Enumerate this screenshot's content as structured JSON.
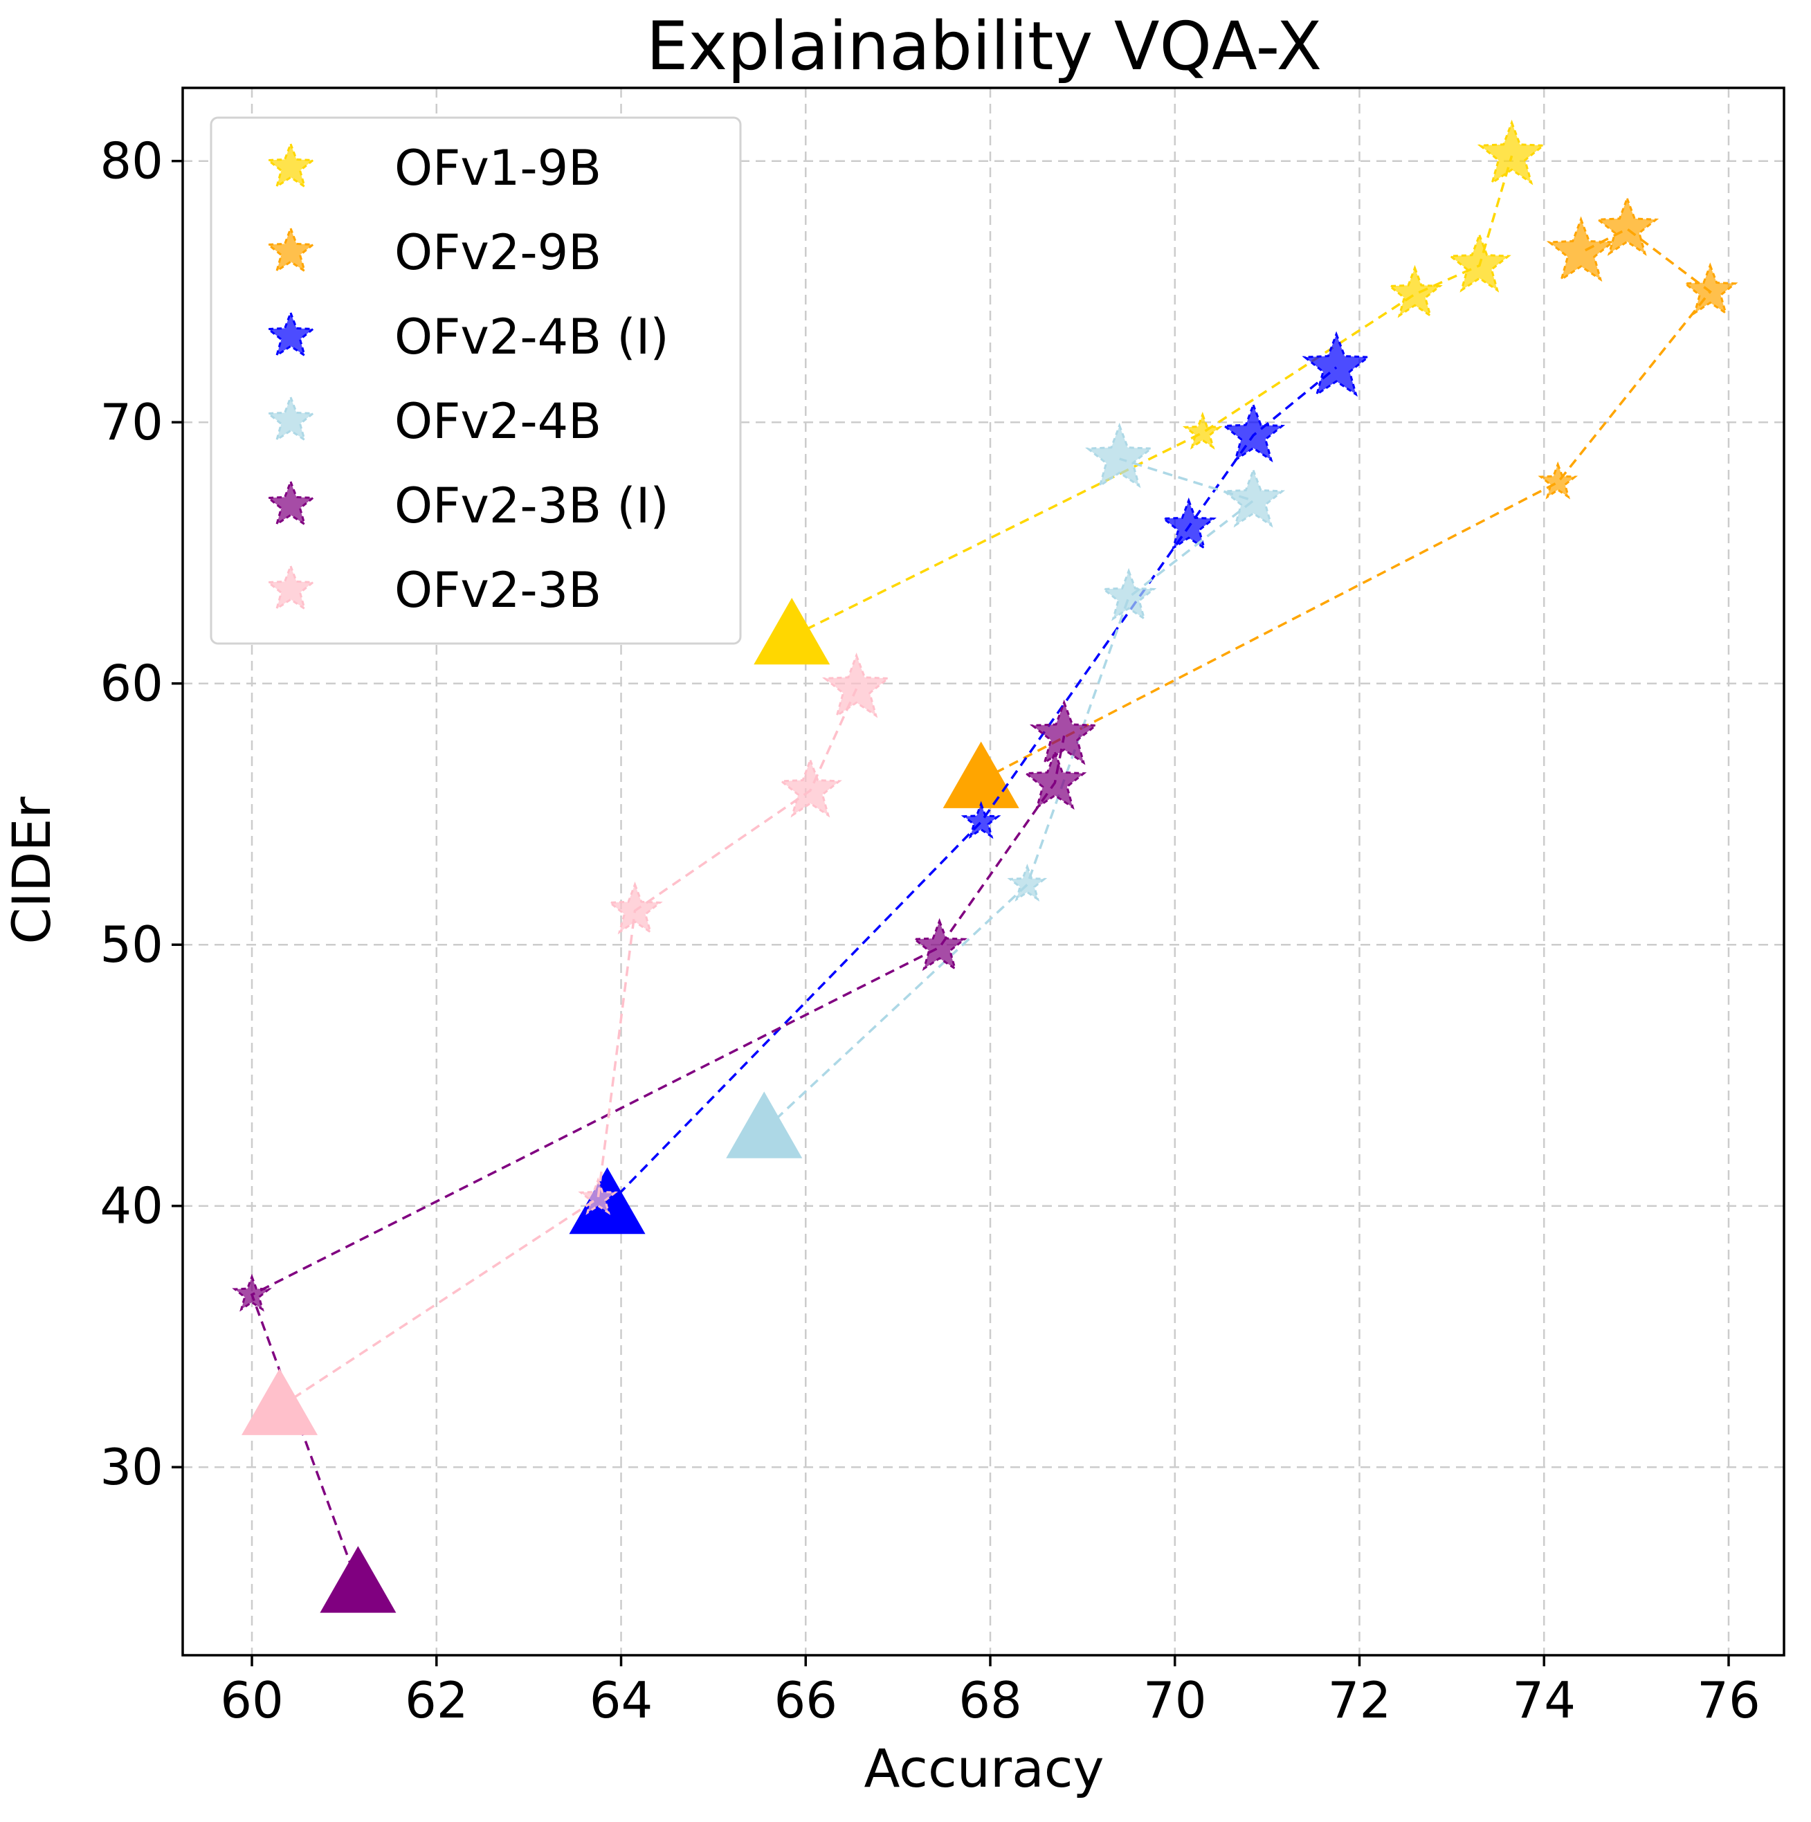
{
  "chart_data": {
    "type": "scatter",
    "title": "Explainability VQA-X",
    "xlabel": "Accuracy",
    "ylabel": "CIDEr",
    "xlim": [
      59.25,
      76.6
    ],
    "ylim": [
      22.8,
      82.8
    ],
    "xticks": [
      60,
      62,
      64,
      66,
      68,
      70,
      72,
      74,
      76
    ],
    "yticks": [
      30,
      40,
      50,
      60,
      70,
      80
    ],
    "grid": true,
    "legend_position": "top-left",
    "series": [
      {
        "name": "OFv1-9B",
        "color": "#FFD700",
        "baseline": {
          "x": 65.85,
          "y": 61.8
        },
        "points": [
          {
            "x": 70.3,
            "y": 69.6
          },
          {
            "x": 72.6,
            "y": 74.9
          },
          {
            "x": 73.3,
            "y": 76.0
          },
          {
            "x": 73.65,
            "y": 80.2
          }
        ]
      },
      {
        "name": "OFv2-9B",
        "color": "#FFA500",
        "baseline": {
          "x": 67.9,
          "y": 56.3
        },
        "points": [
          {
            "x": 74.15,
            "y": 67.7
          },
          {
            "x": 75.8,
            "y": 75.0
          },
          {
            "x": 74.9,
            "y": 77.4
          },
          {
            "x": 74.4,
            "y": 76.5
          }
        ]
      },
      {
        "name": "OFv2-4B (I)",
        "color": "#0000FF",
        "baseline": {
          "x": 63.85,
          "y": 40.0
        },
        "points": [
          {
            "x": 67.9,
            "y": 54.7
          },
          {
            "x": 70.15,
            "y": 66.0
          },
          {
            "x": 70.85,
            "y": 69.5
          },
          {
            "x": 71.75,
            "y": 72.1
          }
        ]
      },
      {
        "name": "OFv2-4B",
        "color": "#ADD8E6",
        "baseline": {
          "x": 65.55,
          "y": 42.9
        },
        "points": [
          {
            "x": 68.4,
            "y": 52.3
          },
          {
            "x": 69.5,
            "y": 63.3
          },
          {
            "x": 70.85,
            "y": 67.0
          },
          {
            "x": 69.4,
            "y": 68.6
          }
        ]
      },
      {
        "name": "OFv2-3B (I)",
        "color": "#800080",
        "baseline": {
          "x": 61.15,
          "y": 25.5
        },
        "points": [
          {
            "x": 60.0,
            "y": 36.6
          },
          {
            "x": 67.45,
            "y": 49.9
          },
          {
            "x": 68.7,
            "y": 56.2
          },
          {
            "x": 68.8,
            "y": 58.0
          }
        ]
      },
      {
        "name": "OFv2-3B",
        "color": "#FFC0CB",
        "baseline": {
          "x": 60.3,
          "y": 32.3
        },
        "points": [
          {
            "x": 63.75,
            "y": 40.3
          },
          {
            "x": 64.15,
            "y": 51.3
          },
          {
            "x": 66.05,
            "y": 55.9
          },
          {
            "x": 66.55,
            "y": 59.8
          }
        ]
      }
    ]
  }
}
